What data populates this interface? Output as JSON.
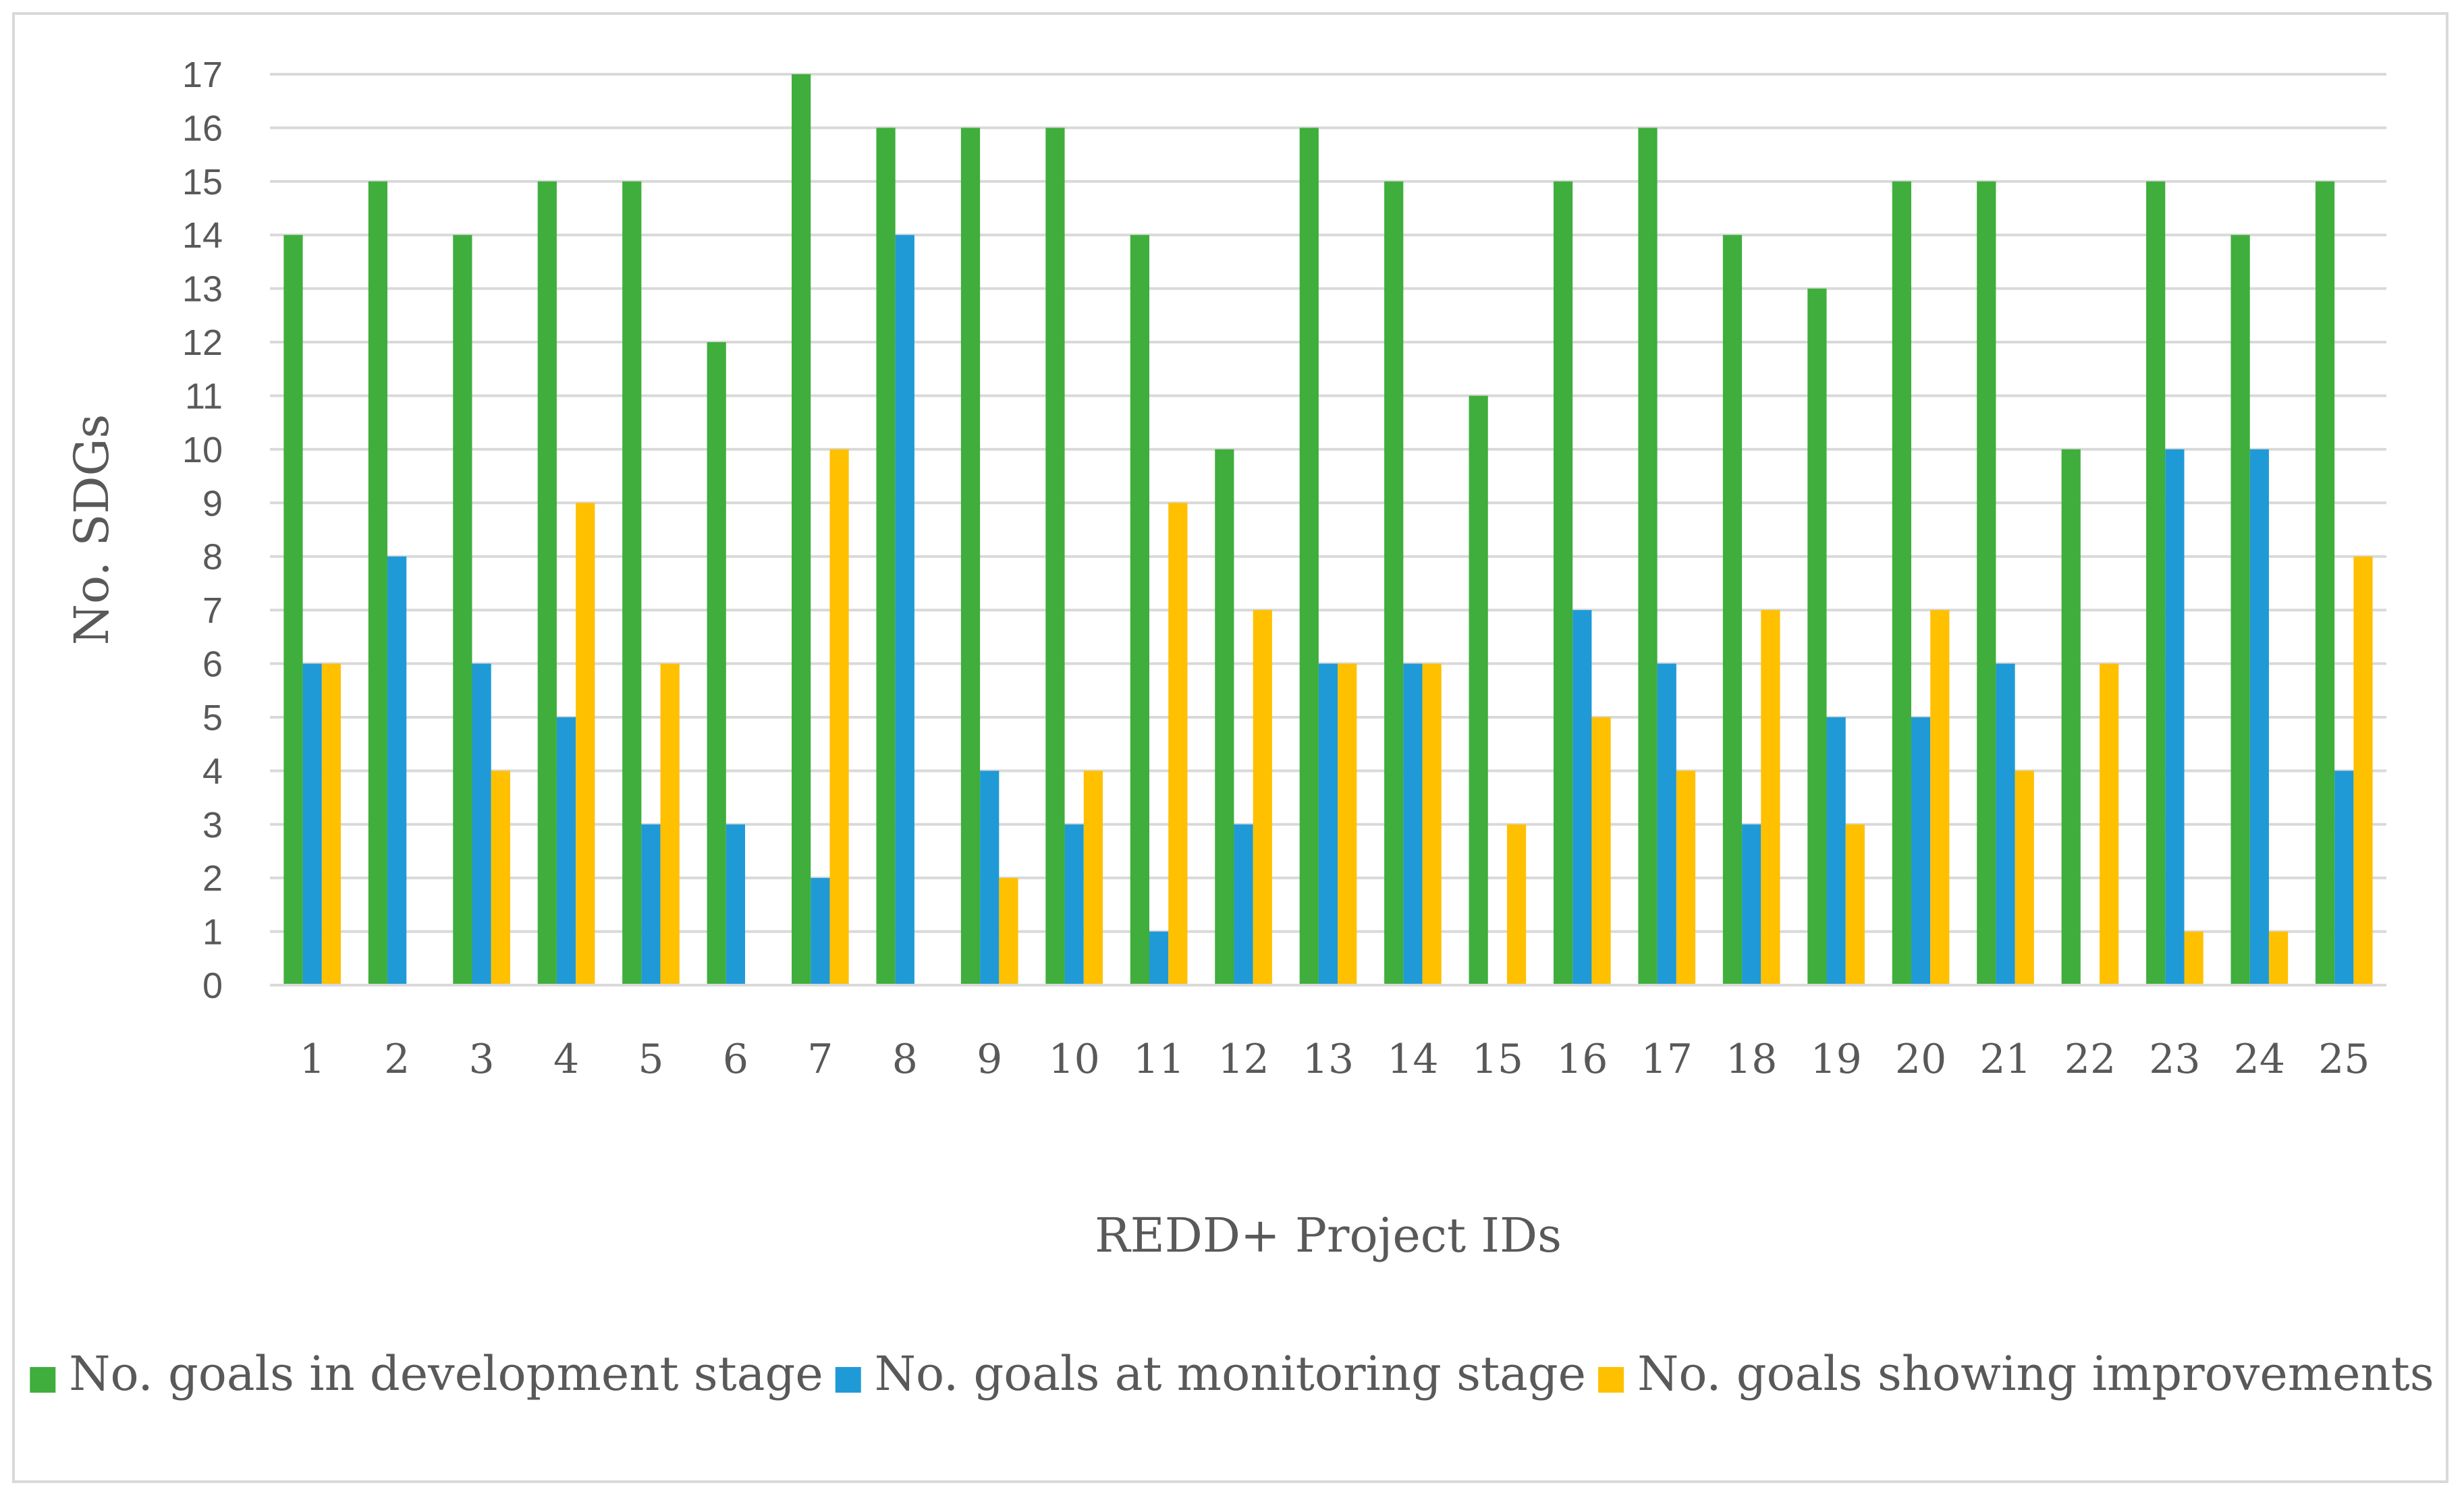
{
  "chart_data": {
    "type": "bar",
    "title": "",
    "xlabel": "REDD+ Project IDs",
    "ylabel": "No. SDGs",
    "ylim": [
      0,
      17
    ],
    "yticks": [
      0,
      1,
      2,
      3,
      4,
      5,
      6,
      7,
      8,
      9,
      10,
      11,
      12,
      13,
      14,
      15,
      16,
      17
    ],
    "grid": true,
    "legend_position": "bottom",
    "categories": [
      "1",
      "2",
      "3",
      "4",
      "5",
      "6",
      "7",
      "8",
      "9",
      "10",
      "11",
      "12",
      "13",
      "14",
      "15",
      "16",
      "17",
      "18",
      "19",
      "20",
      "21",
      "22",
      "23",
      "24",
      "25"
    ],
    "series": [
      {
        "name": "No. goals in development stage",
        "color": "#3fae3c",
        "values": [
          14,
          15,
          14,
          15,
          15,
          12,
          17,
          16,
          16,
          16,
          14,
          10,
          16,
          15,
          11,
          15,
          16,
          14,
          13,
          15,
          15,
          10,
          15,
          14,
          15
        ]
      },
      {
        "name": "No. goals at monitoring stage",
        "color": "#1f9ad6",
        "values": [
          6,
          8,
          6,
          5,
          3,
          3,
          2,
          14,
          4,
          3,
          1,
          3,
          6,
          6,
          0,
          7,
          6,
          3,
          5,
          5,
          6,
          0,
          10,
          10,
          4
        ]
      },
      {
        "name": "No. goals showing improvements",
        "color": "#ffc000",
        "values": [
          6,
          0,
          4,
          9,
          6,
          0,
          10,
          0,
          2,
          4,
          9,
          7,
          6,
          6,
          3,
          5,
          4,
          7,
          3,
          7,
          4,
          6,
          1,
          1,
          8
        ]
      }
    ]
  }
}
